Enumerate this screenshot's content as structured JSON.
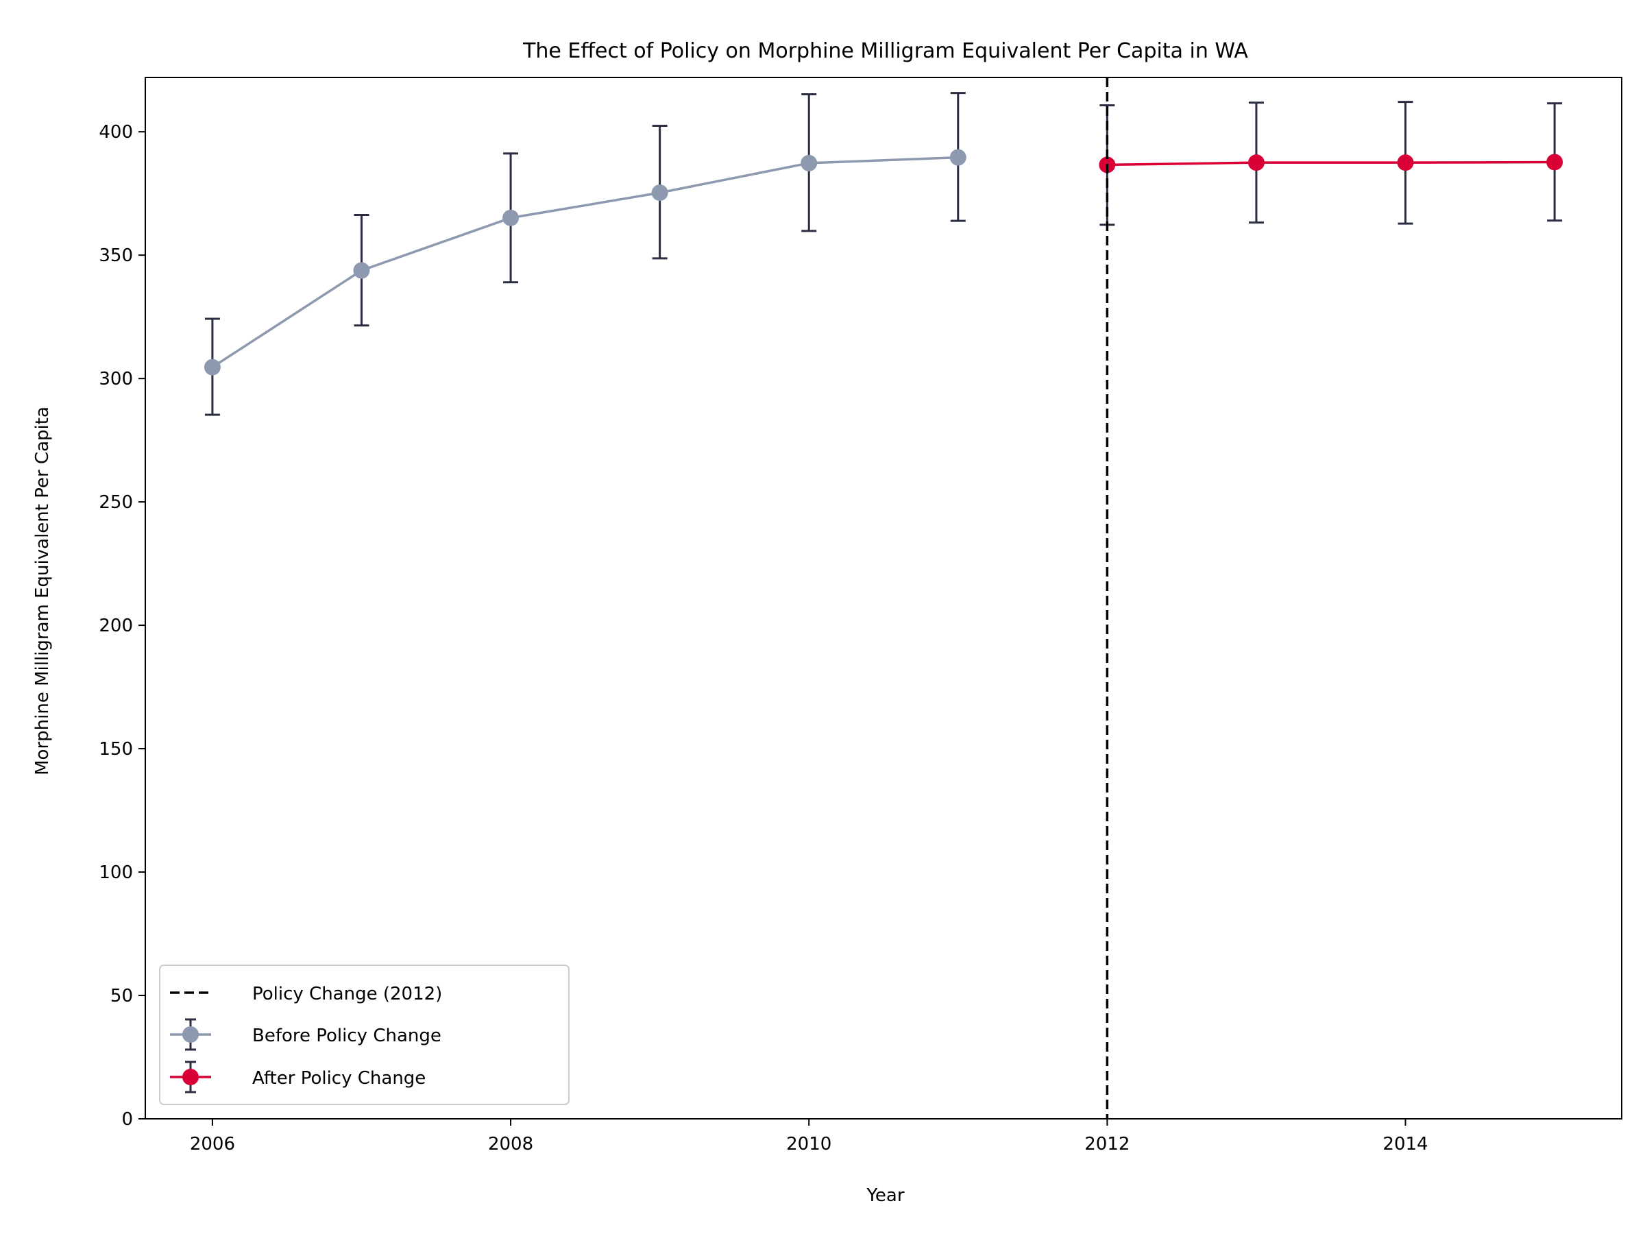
{
  "chart_data": {
    "type": "line",
    "title": "The Effect of Policy on Morphine Milligram Equivalent Per Capita in WA",
    "xlabel": "Year",
    "ylabel": "Morphine Milligram Equivalent Per Capita",
    "xlim": [
      2005.55,
      2015.45
    ],
    "ylim": [
      0,
      422
    ],
    "x_ticks": [
      2006,
      2008,
      2010,
      2012,
      2014
    ],
    "x_tick_labels": [
      "2006",
      "2008",
      "2010",
      "2012",
      "2014"
    ],
    "y_ticks": [
      0,
      50,
      100,
      150,
      200,
      250,
      300,
      350,
      400
    ],
    "y_tick_labels": [
      "0",
      "50",
      "100",
      "150",
      "200",
      "250",
      "300",
      "350",
      "400"
    ],
    "grid": false,
    "legend_position": "lower-left",
    "vline": {
      "x": 2012,
      "label": "Policy Change (2012)",
      "color": "#000000",
      "style": "dashed"
    },
    "series": [
      {
        "name": "Before Policy Change",
        "color": "#8d99ae",
        "errorbar_color": "#2b2d42",
        "points": [
          {
            "x": 2006,
            "y": 304.6,
            "lo": 285.3,
            "hi": 324.2
          },
          {
            "x": 2007,
            "y": 343.8,
            "lo": 321.5,
            "hi": 366.3
          },
          {
            "x": 2008,
            "y": 365.1,
            "lo": 339.0,
            "hi": 391.2
          },
          {
            "x": 2009,
            "y": 375.3,
            "lo": 348.7,
            "hi": 402.4
          },
          {
            "x": 2010,
            "y": 387.3,
            "lo": 359.8,
            "hi": 415.2
          },
          {
            "x": 2011,
            "y": 389.6,
            "lo": 363.9,
            "hi": 415.7
          }
        ]
      },
      {
        "name": "After Policy Change",
        "color": "#d90036",
        "errorbar_color": "#2b2d42",
        "points": [
          {
            "x": 2012,
            "y": 386.6,
            "lo": 362.3,
            "hi": 410.7
          },
          {
            "x": 2013,
            "y": 387.5,
            "lo": 363.2,
            "hi": 411.8
          },
          {
            "x": 2014,
            "y": 387.5,
            "lo": 362.8,
            "hi": 412.1
          },
          {
            "x": 2015,
            "y": 387.7,
            "lo": 364.0,
            "hi": 411.5
          }
        ]
      }
    ]
  }
}
